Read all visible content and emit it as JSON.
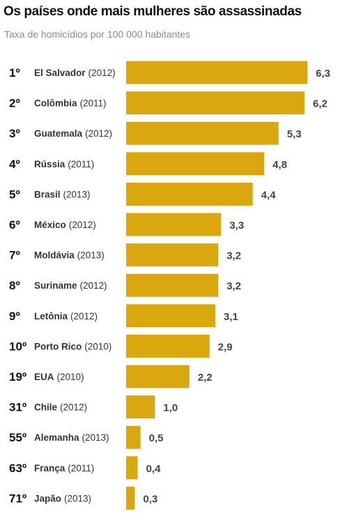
{
  "chart_data": {
    "type": "bar",
    "orientation": "horizontal",
    "title": "Os países onde mais mulheres são assassinadas",
    "subtitle": "Taxa de homicídios por 100 000 habitantes",
    "bar_color": "#dba70e",
    "rows": [
      {
        "rank": "1º",
        "country": "El Salvador",
        "year": "(2012)",
        "value": 6.3,
        "value_label": "6,3"
      },
      {
        "rank": "2º",
        "country": "Colômbia",
        "year": "(2011)",
        "value": 6.2,
        "value_label": "6,2"
      },
      {
        "rank": "3º",
        "country": "Guatemala",
        "year": "(2012)",
        "value": 5.3,
        "value_label": "5,3"
      },
      {
        "rank": "4º",
        "country": "Rússia",
        "year": "(2011)",
        "value": 4.8,
        "value_label": "4,8"
      },
      {
        "rank": "5º",
        "country": "Brasil",
        "year": "(2013)",
        "value": 4.4,
        "value_label": "4,4"
      },
      {
        "rank": "6º",
        "country": "México",
        "year": "(2012)",
        "value": 3.3,
        "value_label": "3,3"
      },
      {
        "rank": "7º",
        "country": "Moldávia",
        "year": "(2013)",
        "value": 3.2,
        "value_label": "3,2"
      },
      {
        "rank": "8º",
        "country": "Suriname",
        "year": "(2012)",
        "value": 3.2,
        "value_label": "3,2"
      },
      {
        "rank": "9º",
        "country": "Letônia",
        "year": "(2012)",
        "value": 3.1,
        "value_label": "3,1"
      },
      {
        "rank": "10º",
        "country": "Porto Rico",
        "year": "(2010)",
        "value": 2.9,
        "value_label": "2,9"
      },
      {
        "rank": "19º",
        "country": "EUA",
        "year": "(2010)",
        "value": 2.2,
        "value_label": "2,2"
      },
      {
        "rank": "31º",
        "country": "Chile",
        "year": "(2012)",
        "value": 1.0,
        "value_label": "1,0"
      },
      {
        "rank": "55º",
        "country": "Alemanha",
        "year": "(2013)",
        "value": 0.5,
        "value_label": "0,5"
      },
      {
        "rank": "63º",
        "country": "França",
        "year": "(2011)",
        "value": 0.4,
        "value_label": "0,4"
      },
      {
        "rank": "71º",
        "country": "Japão",
        "year": "(2013)",
        "value": 0.3,
        "value_label": "0,3"
      }
    ]
  }
}
